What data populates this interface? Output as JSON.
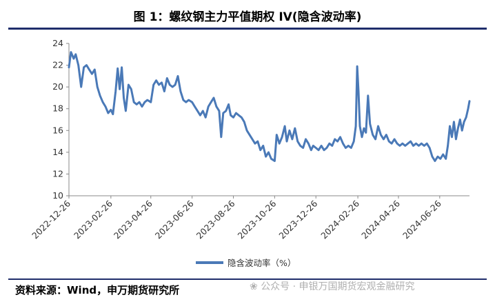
{
  "title": "图 1：螺纹钢主力平值期权 IV(隐含波动率)",
  "source": "资料来源：Wind，申万期货研究所",
  "watermark": "公众号 · 申银万国期货宏观金融研究",
  "colors": {
    "line": "#4a79b7",
    "rule": "#1f2d6b",
    "axis": "#888888"
  },
  "chart_data": {
    "type": "line",
    "title": "",
    "xlabel": "",
    "ylabel": "",
    "ylim": [
      10,
      24
    ],
    "yticks": [
      "10",
      "12",
      "14",
      "16",
      "18",
      "20",
      "22",
      "24"
    ],
    "xlim": [
      "2022-12-26",
      "2024-08-09"
    ],
    "xticks": [
      "2022-12-26",
      "2023-02-26",
      "2023-04-26",
      "2023-06-26",
      "2023-08-26",
      "2023-10-26",
      "2023-12-26",
      "2024-02-26",
      "2024-04-26",
      "2024-06-26"
    ],
    "grid": false,
    "legend": "bottom",
    "series": [
      {
        "name": "隐含波动率（%）",
        "points": [
          [
            "2022-12-26",
            21.8
          ],
          [
            "2022-12-29",
            23.2
          ],
          [
            "2023-01-02",
            22.6
          ],
          [
            "2023-01-05",
            23.0
          ],
          [
            "2023-01-09",
            22.0
          ],
          [
            "2023-01-13",
            20.0
          ],
          [
            "2023-01-17",
            21.8
          ],
          [
            "2023-01-21",
            22.0
          ],
          [
            "2023-01-25",
            21.6
          ],
          [
            "2023-01-29",
            21.2
          ],
          [
            "2023-02-02",
            21.6
          ],
          [
            "2023-02-06",
            20.0
          ],
          [
            "2023-02-10",
            19.2
          ],
          [
            "2023-02-14",
            18.6
          ],
          [
            "2023-02-18",
            18.2
          ],
          [
            "2023-02-22",
            17.6
          ],
          [
            "2023-02-26",
            17.9
          ],
          [
            "2023-03-01",
            17.5
          ],
          [
            "2023-03-05",
            19.6
          ],
          [
            "2023-03-08",
            21.7
          ],
          [
            "2023-03-11",
            19.8
          ],
          [
            "2023-03-14",
            21.8
          ],
          [
            "2023-03-17",
            19.0
          ],
          [
            "2023-03-20",
            17.8
          ],
          [
            "2023-03-24",
            20.2
          ],
          [
            "2023-03-28",
            19.8
          ],
          [
            "2023-04-01",
            18.6
          ],
          [
            "2023-04-05",
            18.4
          ],
          [
            "2023-04-09",
            18.6
          ],
          [
            "2023-04-13",
            18.2
          ],
          [
            "2023-04-17",
            18.6
          ],
          [
            "2023-04-21",
            18.8
          ],
          [
            "2023-04-26",
            18.6
          ],
          [
            "2023-04-30",
            20.2
          ],
          [
            "2023-05-04",
            20.6
          ],
          [
            "2023-05-08",
            20.2
          ],
          [
            "2023-05-12",
            20.4
          ],
          [
            "2023-05-16",
            19.6
          ],
          [
            "2023-05-20",
            20.8
          ],
          [
            "2023-05-24",
            20.2
          ],
          [
            "2023-05-28",
            20.0
          ],
          [
            "2023-06-01",
            20.2
          ],
          [
            "2023-06-05",
            21.0
          ],
          [
            "2023-06-09",
            19.6
          ],
          [
            "2023-06-13",
            18.8
          ],
          [
            "2023-06-17",
            18.6
          ],
          [
            "2023-06-21",
            18.8
          ],
          [
            "2023-06-26",
            18.6
          ],
          [
            "2023-06-30",
            18.2
          ],
          [
            "2023-07-04",
            17.8
          ],
          [
            "2023-07-08",
            17.4
          ],
          [
            "2023-07-12",
            17.8
          ],
          [
            "2023-07-16",
            17.2
          ],
          [
            "2023-07-20",
            18.2
          ],
          [
            "2023-07-24",
            18.6
          ],
          [
            "2023-07-28",
            19.0
          ],
          [
            "2023-08-01",
            18.2
          ],
          [
            "2023-08-05",
            17.8
          ],
          [
            "2023-08-08",
            15.4
          ],
          [
            "2023-08-11",
            17.6
          ],
          [
            "2023-08-15",
            17.8
          ],
          [
            "2023-08-19",
            18.4
          ],
          [
            "2023-08-22",
            17.4
          ],
          [
            "2023-08-26",
            17.2
          ],
          [
            "2023-08-30",
            17.6
          ],
          [
            "2023-09-03",
            17.4
          ],
          [
            "2023-09-07",
            17.2
          ],
          [
            "2023-09-11",
            16.8
          ],
          [
            "2023-09-15",
            16.0
          ],
          [
            "2023-09-19",
            15.6
          ],
          [
            "2023-09-23",
            15.2
          ],
          [
            "2023-09-27",
            14.8
          ],
          [
            "2023-10-01",
            15.0
          ],
          [
            "2023-10-05",
            14.2
          ],
          [
            "2023-10-09",
            14.6
          ],
          [
            "2023-10-13",
            13.6
          ],
          [
            "2023-10-17",
            14.0
          ],
          [
            "2023-10-21",
            13.4
          ],
          [
            "2023-10-26",
            13.2
          ],
          [
            "2023-10-29",
            15.6
          ],
          [
            "2023-11-02",
            14.8
          ],
          [
            "2023-11-06",
            15.4
          ],
          [
            "2023-11-10",
            16.4
          ],
          [
            "2023-11-13",
            15.0
          ],
          [
            "2023-11-17",
            16.0
          ],
          [
            "2023-11-21",
            15.2
          ],
          [
            "2023-11-25",
            16.2
          ],
          [
            "2023-11-29",
            15.0
          ],
          [
            "2023-12-03",
            14.6
          ],
          [
            "2023-12-07",
            14.4
          ],
          [
            "2023-12-11",
            15.2
          ],
          [
            "2023-12-15",
            14.8
          ],
          [
            "2023-12-19",
            14.2
          ],
          [
            "2023-12-22",
            14.6
          ],
          [
            "2023-12-26",
            14.4
          ],
          [
            "2023-12-30",
            14.2
          ],
          [
            "2024-01-03",
            14.6
          ],
          [
            "2024-01-07",
            14.2
          ],
          [
            "2024-01-11",
            14.4
          ],
          [
            "2024-01-15",
            14.8
          ],
          [
            "2024-01-19",
            14.6
          ],
          [
            "2024-01-23",
            15.2
          ],
          [
            "2024-01-27",
            15.0
          ],
          [
            "2024-01-31",
            15.4
          ],
          [
            "2024-02-04",
            14.8
          ],
          [
            "2024-02-08",
            14.4
          ],
          [
            "2024-02-12",
            14.6
          ],
          [
            "2024-02-16",
            14.4
          ],
          [
            "2024-02-20",
            15.0
          ],
          [
            "2024-02-23",
            16.4
          ],
          [
            "2024-02-25",
            21.9
          ],
          [
            "2024-02-27",
            19.6
          ],
          [
            "2024-02-29",
            16.4
          ],
          [
            "2024-03-03",
            15.4
          ],
          [
            "2024-03-06",
            16.2
          ],
          [
            "2024-03-09",
            15.8
          ],
          [
            "2024-03-12",
            19.2
          ],
          [
            "2024-03-15",
            16.6
          ],
          [
            "2024-03-19",
            15.6
          ],
          [
            "2024-03-23",
            15.2
          ],
          [
            "2024-03-27",
            16.4
          ],
          [
            "2024-03-31",
            15.6
          ],
          [
            "2024-04-04",
            15.2
          ],
          [
            "2024-04-08",
            15.6
          ],
          [
            "2024-04-12",
            15.0
          ],
          [
            "2024-04-16",
            14.8
          ],
          [
            "2024-04-20",
            15.2
          ],
          [
            "2024-04-24",
            14.8
          ],
          [
            "2024-04-28",
            14.6
          ],
          [
            "2024-05-02",
            14.8
          ],
          [
            "2024-05-06",
            14.6
          ],
          [
            "2024-05-10",
            14.8
          ],
          [
            "2024-05-14",
            15.0
          ],
          [
            "2024-05-18",
            14.6
          ],
          [
            "2024-05-22",
            14.8
          ],
          [
            "2024-05-26",
            14.6
          ],
          [
            "2024-05-30",
            14.8
          ],
          [
            "2024-06-03",
            14.6
          ],
          [
            "2024-06-07",
            14.8
          ],
          [
            "2024-06-11",
            14.4
          ],
          [
            "2024-06-15",
            13.6
          ],
          [
            "2024-06-19",
            13.2
          ],
          [
            "2024-06-23",
            13.6
          ],
          [
            "2024-06-27",
            13.4
          ],
          [
            "2024-07-01",
            13.8
          ],
          [
            "2024-07-05",
            13.4
          ],
          [
            "2024-07-08",
            14.6
          ],
          [
            "2024-07-11",
            16.4
          ],
          [
            "2024-07-14",
            15.4
          ],
          [
            "2024-07-17",
            16.8
          ],
          [
            "2024-07-20",
            15.2
          ],
          [
            "2024-07-23",
            16.2
          ],
          [
            "2024-07-26",
            17.0
          ],
          [
            "2024-07-29",
            16.0
          ],
          [
            "2024-08-01",
            16.8
          ],
          [
            "2024-08-04",
            17.2
          ],
          [
            "2024-08-07",
            18.0
          ],
          [
            "2024-08-09",
            18.7
          ]
        ]
      }
    ]
  }
}
